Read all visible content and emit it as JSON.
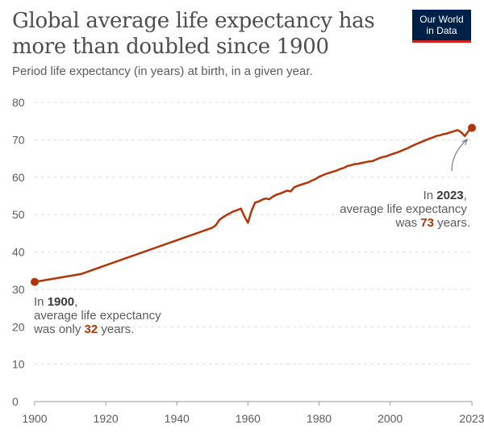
{
  "title": "Global average life expectancy has more than doubled since 1900",
  "subtitle": "Period life expectancy (in years) at birth, in a given year.",
  "logo": {
    "line1": "Our World",
    "line2": "in Data"
  },
  "colors": {
    "line": "#b13507",
    "grid": "#dddddd",
    "text": "#5b5b5b",
    "logo_bg": "#002147",
    "logo_accent": "#ce261e"
  },
  "chart_data": {
    "type": "line",
    "xlim": [
      1900,
      2023
    ],
    "ylim": [
      0,
      80
    ],
    "y_ticks": [
      0,
      10,
      20,
      30,
      40,
      50,
      60,
      70,
      80
    ],
    "x_ticks": [
      1900,
      1920,
      1940,
      1960,
      1980,
      2000,
      2023
    ],
    "grid": true,
    "x": [
      1900,
      1913,
      1950,
      1951,
      1952,
      1953,
      1954,
      1955,
      1956,
      1957,
      1958,
      1959,
      1960,
      1961,
      1962,
      1963,
      1964,
      1965,
      1966,
      1967,
      1968,
      1969,
      1970,
      1971,
      1972,
      1973,
      1974,
      1975,
      1976,
      1977,
      1978,
      1979,
      1980,
      1981,
      1982,
      1983,
      1984,
      1985,
      1986,
      1987,
      1988,
      1989,
      1990,
      1991,
      1992,
      1993,
      1994,
      1995,
      1996,
      1997,
      1998,
      1999,
      2000,
      2001,
      2002,
      2003,
      2004,
      2005,
      2006,
      2007,
      2008,
      2009,
      2010,
      2011,
      2012,
      2013,
      2014,
      2015,
      2016,
      2017,
      2018,
      2019,
      2020,
      2021,
      2022,
      2023
    ],
    "y": [
      32,
      34.1,
      46.5,
      47.2,
      48.6,
      49.3,
      49.9,
      50.4,
      50.9,
      51.2,
      51.6,
      49.5,
      47.8,
      51.0,
      53.2,
      53.5,
      54.0,
      54.3,
      54.1,
      54.8,
      55.3,
      55.6,
      56.0,
      56.4,
      56.2,
      57.3,
      57.7,
      58.0,
      58.3,
      58.6,
      59.1,
      59.5,
      60.1,
      60.5,
      60.9,
      61.2,
      61.5,
      61.8,
      62.2,
      62.5,
      63.0,
      63.2,
      63.5,
      63.6,
      63.8,
      64.0,
      64.2,
      64.3,
      64.7,
      65.1,
      65.4,
      65.6,
      66.0,
      66.3,
      66.6,
      67.0,
      67.4,
      67.8,
      68.3,
      68.7,
      69.1,
      69.5,
      69.9,
      70.3,
      70.6,
      71.0,
      71.2,
      71.5,
      71.7,
      72.0,
      72.3,
      72.6,
      72.0,
      71.0,
      72.3,
      73.2
    ],
    "annotations": [
      {
        "prefix": "In ",
        "year": "1900",
        "suffix": ",",
        "line2": "average life expectancy",
        "line3_prefix": "was only ",
        "value": "32",
        "line3_suffix": " years."
      },
      {
        "prefix": "In ",
        "year": "2023",
        "suffix": ",",
        "line2": "average life expectancy",
        "line3_prefix": "was ",
        "value": "73",
        "line3_suffix": " years."
      }
    ]
  }
}
